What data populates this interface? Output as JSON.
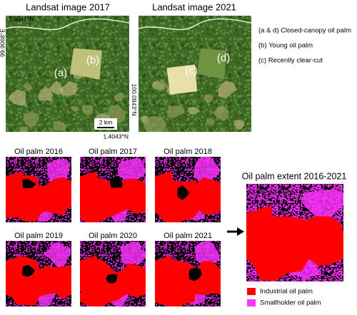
{
  "top_panels": [
    {
      "title": "Landsat image 2017",
      "labels": [
        "(a)",
        "(b)"
      ]
    },
    {
      "title": "Landsat image 2021",
      "labels": [
        "(c)",
        "(d)"
      ]
    }
  ],
  "coordinates": {
    "north": "1.5841°N",
    "west": "99.9068°E",
    "east": "100.0843°N",
    "south": "1.4043°N"
  },
  "scale_bar": "2 km",
  "annotations": [
    "(a & d) Closed-canopy oil palm",
    "(b) Young oil palm",
    "(c) Recently clear-cut"
  ],
  "yearly_maps": [
    "Oil palm 2016",
    "Oil palm 2017",
    "Oil palm 2018",
    "Oil palm 2019",
    "Oil palm 2020",
    "Oil palm 2021"
  ],
  "extent_map": {
    "title": "Oil palm extent 2016-2021"
  },
  "legend": [
    {
      "label": "Industrial oil palm",
      "color": "#ff0000"
    },
    {
      "label": "Smallholder oil palm",
      "color": "#ff33ff"
    }
  ]
}
